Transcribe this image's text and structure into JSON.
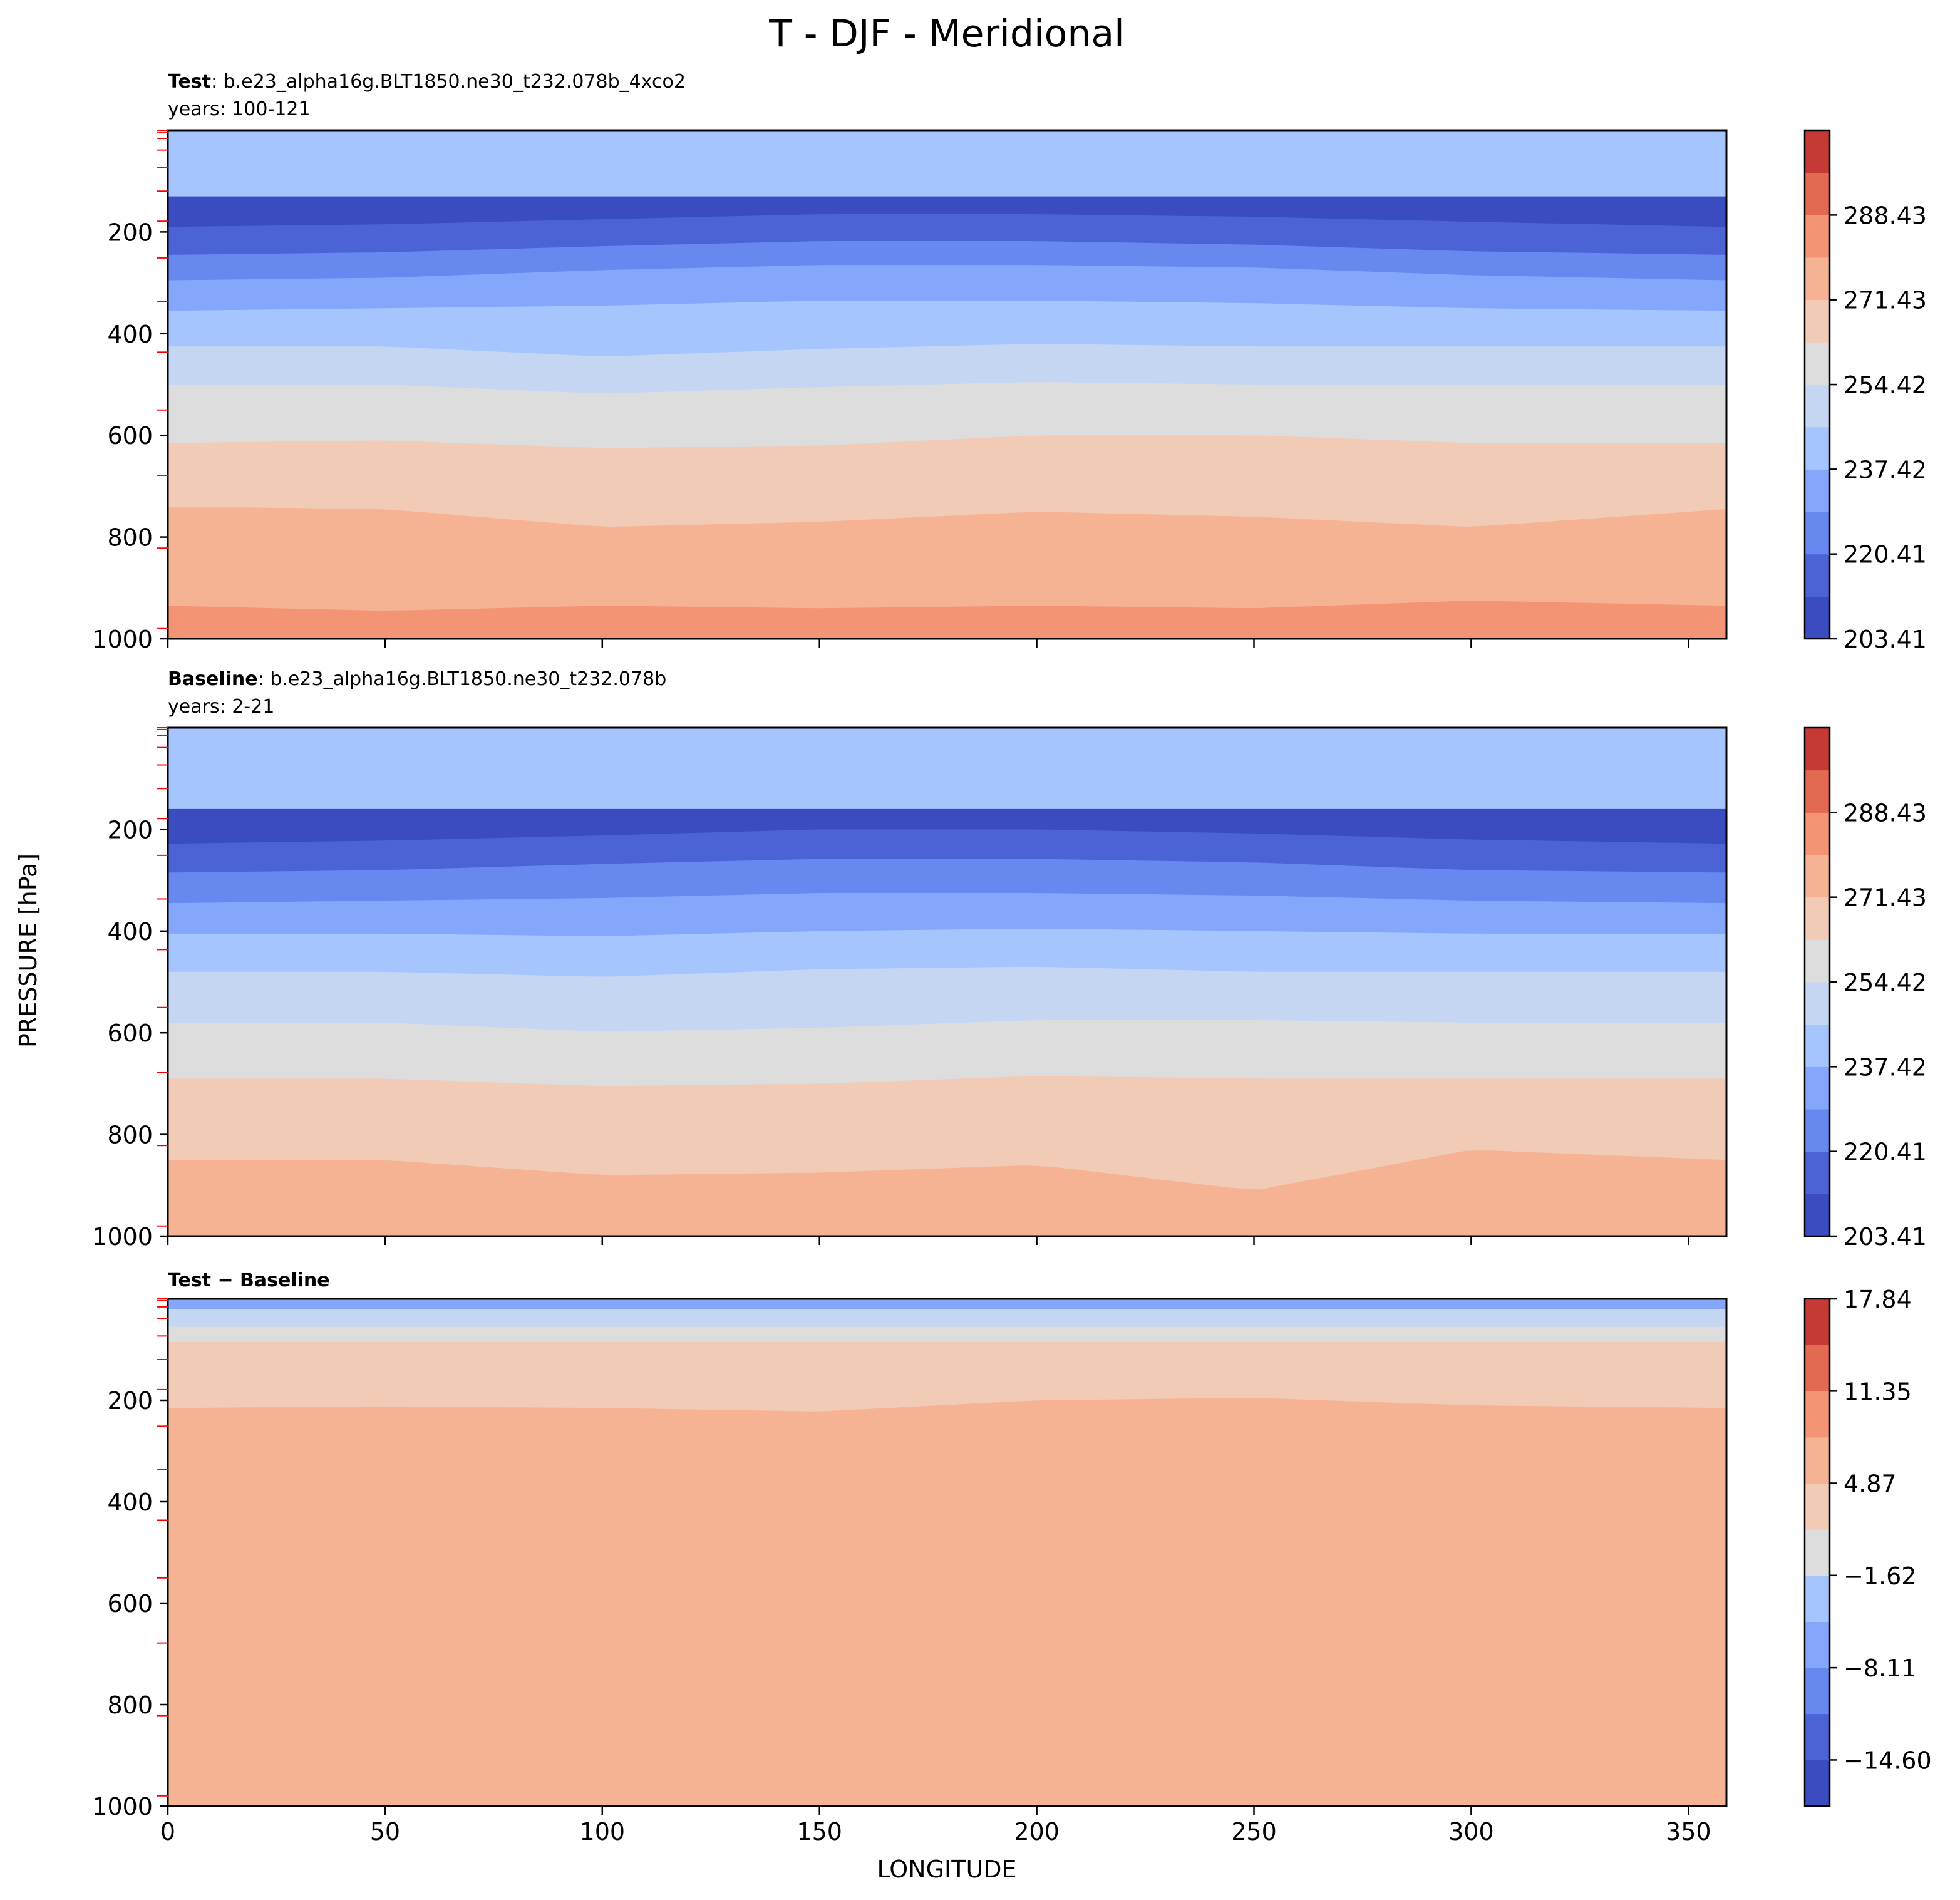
{
  "title": "T - DJF - Meridional",
  "xlabel": "LONGITUDE",
  "ylabel": "PRESSURE [hPa]",
  "panels": [
    {
      "case_label": "Test",
      "case_sep": ": ",
      "case_name": "b.e23_alpha16g.BLT1850.ne30_t232.078b_4xco2",
      "years": "years: 100-121"
    },
    {
      "case_label": "Baseline",
      "case_sep": ": ",
      "case_name": "b.e23_alpha16g.BLT1850.ne30_t232.078b",
      "years": "years: 2-21"
    },
    {
      "case_label": "Test − Baseline",
      "case_sep": "",
      "case_name": "",
      "years": ""
    }
  ],
  "colormap": [
    "#3b4cc0",
    "#4c63d6",
    "#6788ee",
    "#84a7fc",
    "#a6c4fe",
    "#c5d6f2",
    "#dddddd",
    "#f2cbb7",
    "#f6b394",
    "#f39475",
    "#e26952",
    "#c63a35"
  ],
  "chart_data": [
    {
      "type": "heatmap",
      "panel": "Test",
      "xlim": [
        0,
        358.75
      ],
      "ylim": [
        1000,
        0
      ],
      "xticks": [
        0,
        50,
        100,
        150,
        200,
        250,
        300,
        350
      ],
      "yticks": [
        200,
        400,
        600,
        800,
        1000
      ],
      "level_ticks": [
        203.41,
        220.41,
        237.42,
        254.42,
        271.43,
        288.43
      ],
      "levels": [
        203.41,
        211.91,
        220.41,
        228.92,
        237.42,
        245.92,
        254.42,
        262.93,
        271.43,
        279.93,
        288.43,
        296.94,
        305.44
      ],
      "band_tops_hpa": [
        {
          "x": [
            0,
            50,
            100,
            150,
            200,
            250,
            300,
            358.75
          ],
          "p": [
            130,
            130,
            130,
            130,
            130,
            130,
            130,
            130
          ]
        },
        {
          "x": [
            0,
            50,
            100,
            150,
            200,
            250,
            300,
            358.75
          ],
          "p": [
            190,
            185,
            175,
            165,
            165,
            170,
            180,
            190
          ]
        },
        {
          "x": [
            0,
            50,
            100,
            150,
            200,
            250,
            300,
            358.75
          ],
          "p": [
            245,
            240,
            228,
            218,
            218,
            225,
            238,
            245
          ]
        },
        {
          "x": [
            0,
            50,
            100,
            150,
            200,
            250,
            300,
            358.75
          ],
          "p": [
            295,
            290,
            275,
            265,
            265,
            270,
            285,
            295
          ]
        },
        {
          "x": [
            0,
            50,
            100,
            150,
            200,
            250,
            300,
            358.75
          ],
          "p": [
            355,
            350,
            345,
            335,
            335,
            340,
            350,
            355
          ]
        },
        {
          "x": [
            0,
            50,
            100,
            150,
            200,
            250,
            300,
            358.75
          ],
          "p": [
            425,
            425,
            445,
            430,
            420,
            425,
            425,
            425
          ]
        },
        {
          "x": [
            0,
            50,
            100,
            150,
            200,
            250,
            300,
            358.75
          ],
          "p": [
            500,
            500,
            518,
            505,
            495,
            500,
            500,
            500
          ]
        },
        {
          "x": [
            0,
            50,
            100,
            150,
            200,
            250,
            300,
            358.75
          ],
          "p": [
            615,
            610,
            625,
            620,
            600,
            600,
            615,
            615
          ]
        },
        {
          "x": [
            0,
            50,
            100,
            150,
            200,
            250,
            300,
            358.75
          ],
          "p": [
            740,
            745,
            780,
            770,
            750,
            760,
            780,
            745
          ]
        },
        {
          "x": [
            0,
            50,
            100,
            150,
            200,
            250,
            300,
            358.75
          ],
          "p": [
            935,
            945,
            935,
            940,
            935,
            940,
            925,
            935
          ]
        }
      ]
    },
    {
      "type": "heatmap",
      "panel": "Baseline",
      "xlim": [
        0,
        358.75
      ],
      "ylim": [
        1000,
        0
      ],
      "xticks": [
        0,
        50,
        100,
        150,
        200,
        250,
        300,
        350
      ],
      "yticks": [
        200,
        400,
        600,
        800,
        1000
      ],
      "level_ticks": [
        203.41,
        220.41,
        237.42,
        254.42,
        271.43,
        288.43
      ],
      "levels": [
        203.41,
        211.91,
        220.41,
        228.92,
        237.42,
        245.92,
        254.42,
        262.93,
        271.43,
        279.93,
        288.43,
        296.94,
        305.44
      ],
      "band_tops_hpa": [
        {
          "x": [
            0,
            50,
            100,
            150,
            200,
            250,
            300,
            358.75
          ],
          "p": [
            160,
            160,
            160,
            160,
            160,
            160,
            160,
            160
          ]
        },
        {
          "x": [
            0,
            50,
            100,
            150,
            200,
            250,
            300,
            358.75
          ],
          "p": [
            228,
            222,
            212,
            200,
            200,
            208,
            220,
            228
          ]
        },
        {
          "x": [
            0,
            50,
            100,
            150,
            200,
            250,
            300,
            358.75
          ],
          "p": [
            285,
            280,
            268,
            258,
            258,
            265,
            280,
            285
          ]
        },
        {
          "x": [
            0,
            50,
            100,
            150,
            200,
            250,
            300,
            358.75
          ],
          "p": [
            345,
            340,
            335,
            325,
            325,
            330,
            340,
            345
          ]
        },
        {
          "x": [
            0,
            50,
            100,
            150,
            200,
            250,
            300,
            358.75
          ],
          "p": [
            405,
            405,
            410,
            400,
            395,
            400,
            405,
            405
          ]
        },
        {
          "x": [
            0,
            50,
            100,
            150,
            200,
            250,
            300,
            358.75
          ],
          "p": [
            480,
            480,
            490,
            475,
            470,
            480,
            480,
            480
          ]
        },
        {
          "x": [
            0,
            50,
            100,
            150,
            200,
            250,
            300,
            358.75
          ],
          "p": [
            580,
            580,
            598,
            590,
            575,
            575,
            580,
            580
          ]
        },
        {
          "x": [
            0,
            50,
            100,
            150,
            200,
            250,
            300,
            358.75
          ],
          "p": [
            690,
            690,
            705,
            700,
            685,
            690,
            690,
            690
          ]
        },
        {
          "x": [
            0,
            50,
            100,
            150,
            200,
            250,
            300,
            358.75
          ],
          "p": [
            850,
            850,
            880,
            875,
            860,
            910,
            830,
            850
          ]
        }
      ]
    },
    {
      "type": "heatmap",
      "panel": "Test − Baseline",
      "xlim": [
        0,
        358.75
      ],
      "ylim": [
        1000,
        0
      ],
      "xticks": [
        0,
        50,
        100,
        150,
        200,
        250,
        300,
        350
      ],
      "yticks": [
        200,
        400,
        600,
        800,
        1000
      ],
      "level_ticks": [
        -14.6,
        -8.11,
        -1.62,
        4.87,
        11.35,
        17.84
      ],
      "levels": [
        -17.84,
        -14.6,
        -11.35,
        -8.11,
        -4.87,
        -1.62,
        1.62,
        4.87,
        8.11,
        11.35,
        14.6,
        17.84
      ],
      "band_tops_hpa": [
        {
          "x": [
            0,
            50,
            100,
            150,
            200,
            250,
            300,
            358.75
          ],
          "p": [
            20,
            20,
            20,
            20,
            20,
            20,
            20,
            20
          ]
        },
        {
          "x": [
            0,
            50,
            100,
            150,
            200,
            250,
            300,
            358.75
          ],
          "p": [
            55,
            55,
            55,
            55,
            55,
            55,
            55,
            55
          ]
        },
        {
          "x": [
            0,
            50,
            100,
            150,
            200,
            250,
            300,
            358.75
          ],
          "p": [
            85,
            85,
            85,
            85,
            85,
            85,
            85,
            85
          ]
        },
        {
          "x": [
            0,
            50,
            100,
            150,
            200,
            250,
            300,
            358.75
          ],
          "p": [
            215,
            212,
            215,
            222,
            200,
            195,
            210,
            215
          ]
        }
      ]
    }
  ]
}
